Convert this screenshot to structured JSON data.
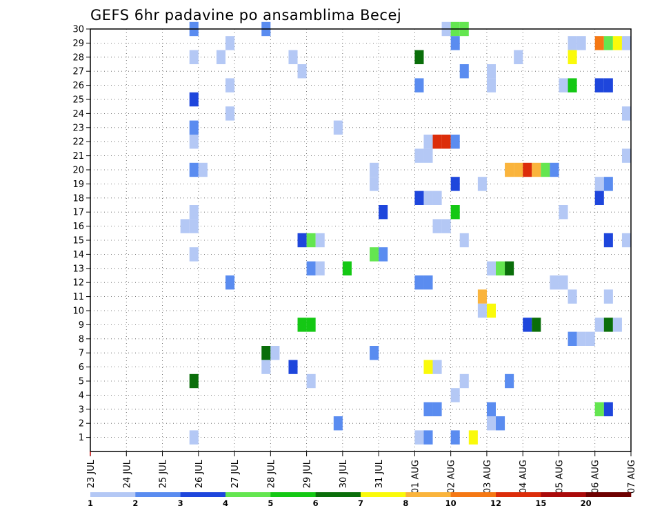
{
  "chart_data": {
    "type": "heatmap",
    "title": "GEFS 6hr padavine po ansamblima Becej",
    "xlabel": "",
    "ylabel": "",
    "x_tick_labels": [
      "23 JUL",
      "24 JUL",
      "25 JUL",
      "26 JUL",
      "27 JUL",
      "28 JUL",
      "29 JUL",
      "30 JUL",
      "31 JUL",
      "01 AUG",
      "02 AUG",
      "03 AUG",
      "04 AUG",
      "05 AUG",
      "06 AUG",
      "07 AUG"
    ],
    "x_range_steps": [
      0,
      60
    ],
    "steps_per_day": 4,
    "y_tick_labels": [
      "1",
      "2",
      "3",
      "4",
      "5",
      "6",
      "7",
      "8",
      "9",
      "10",
      "11",
      "12",
      "13",
      "14",
      "15",
      "16",
      "17",
      "18",
      "19",
      "20",
      "21",
      "22",
      "23",
      "24",
      "25",
      "26",
      "27",
      "28",
      "29",
      "30"
    ],
    "y_range": [
      0,
      30
    ],
    "grid": true,
    "legend_position": "bottom",
    "legend_thresholds": [
      "1",
      "2",
      "3",
      "4",
      "5",
      "6",
      "7",
      "8",
      "10",
      "12",
      "15",
      "20"
    ],
    "legend_colors": [
      "#b4c8f5",
      "#5a8cf0",
      "#1e46dc",
      "#64e650",
      "#14c814",
      "#0a6e0a",
      "#fafa0a",
      "#fab43c",
      "#f57814",
      "#dc2d0a",
      "#aa0a0a",
      "#6e0000"
    ],
    "cell_color_index_note": "",
    "cells": [
      [
        11.5,
        30,
        1
      ],
      [
        19.5,
        30,
        1
      ],
      [
        39.5,
        30,
        0
      ],
      [
        40.5,
        30,
        3
      ],
      [
        41.5,
        30,
        3
      ],
      [
        15.5,
        29,
        0
      ],
      [
        40.5,
        29,
        1
      ],
      [
        53.5,
        29,
        0
      ],
      [
        54.5,
        29,
        0
      ],
      [
        56.5,
        29,
        8
      ],
      [
        57.5,
        29,
        3
      ],
      [
        58.5,
        29,
        6
      ],
      [
        59.5,
        29,
        0
      ],
      [
        11.5,
        28,
        0
      ],
      [
        14.5,
        28,
        0
      ],
      [
        22.5,
        28,
        0
      ],
      [
        36.5,
        28,
        5
      ],
      [
        47.5,
        28,
        0
      ],
      [
        53.5,
        28,
        6
      ],
      [
        23.5,
        27,
        0
      ],
      [
        41.5,
        27,
        1
      ],
      [
        44.5,
        27,
        0
      ],
      [
        15.5,
        26,
        0
      ],
      [
        36.5,
        26,
        1
      ],
      [
        44.5,
        26,
        0
      ],
      [
        52.5,
        26,
        0
      ],
      [
        53.5,
        26,
        4
      ],
      [
        56.5,
        26,
        2
      ],
      [
        57.5,
        26,
        2
      ],
      [
        11.5,
        25,
        2
      ],
      [
        60.5,
        25,
        3
      ],
      [
        15.5,
        24,
        0
      ],
      [
        59.5,
        24,
        0
      ],
      [
        60.5,
        24,
        0
      ],
      [
        11.5,
        23,
        1
      ],
      [
        27.5,
        23,
        0
      ],
      [
        11.5,
        22,
        0
      ],
      [
        37.5,
        22,
        0
      ],
      [
        38.5,
        22,
        9
      ],
      [
        39.5,
        22,
        9
      ],
      [
        40.5,
        22,
        1
      ],
      [
        36.5,
        21,
        0
      ],
      [
        37.5,
        21,
        0
      ],
      [
        59.5,
        21,
        0
      ],
      [
        11.5,
        20,
        1
      ],
      [
        12.5,
        20,
        0
      ],
      [
        31.5,
        20,
        0
      ],
      [
        46.5,
        20,
        7
      ],
      [
        47.5,
        20,
        7
      ],
      [
        48.5,
        20,
        9
      ],
      [
        49.5,
        20,
        7
      ],
      [
        50.5,
        20,
        3
      ],
      [
        51.5,
        20,
        1
      ],
      [
        31.5,
        19,
        0
      ],
      [
        40.5,
        19,
        2
      ],
      [
        43.5,
        19,
        0
      ],
      [
        56.5,
        19,
        0
      ],
      [
        57.5,
        19,
        1
      ],
      [
        36.5,
        18,
        2
      ],
      [
        37.5,
        18,
        0
      ],
      [
        38.5,
        18,
        0
      ],
      [
        56.5,
        18,
        2
      ],
      [
        11.5,
        17,
        0
      ],
      [
        32.5,
        17,
        2
      ],
      [
        40.5,
        17,
        4
      ],
      [
        52.5,
        17,
        0
      ],
      [
        10.5,
        16,
        0
      ],
      [
        11.5,
        16,
        0
      ],
      [
        38.5,
        16,
        0
      ],
      [
        39.5,
        16,
        0
      ],
      [
        60.5,
        16,
        1
      ],
      [
        23.5,
        15,
        2
      ],
      [
        24.5,
        15,
        3
      ],
      [
        25.5,
        15,
        0
      ],
      [
        41.5,
        15,
        0
      ],
      [
        57.5,
        15,
        2
      ],
      [
        59.5,
        15,
        0
      ],
      [
        60.5,
        15,
        4
      ],
      [
        61.5,
        15,
        11
      ],
      [
        11.5,
        14,
        0
      ],
      [
        31.5,
        14,
        3
      ],
      [
        32.5,
        14,
        1
      ],
      [
        24.5,
        13,
        1
      ],
      [
        25.5,
        13,
        0
      ],
      [
        28.5,
        13,
        4
      ],
      [
        44.5,
        13,
        0
      ],
      [
        45.5,
        13,
        3
      ],
      [
        46.5,
        13,
        5
      ],
      [
        15.5,
        12,
        1
      ],
      [
        36.5,
        12,
        1
      ],
      [
        37.5,
        12,
        1
      ],
      [
        51.5,
        12,
        0
      ],
      [
        52.5,
        12,
        0
      ],
      [
        43.5,
        11,
        7
      ],
      [
        53.5,
        11,
        0
      ],
      [
        57.5,
        11,
        0
      ],
      [
        43.5,
        10,
        0
      ],
      [
        44.5,
        10,
        6
      ],
      [
        23.5,
        9,
        4
      ],
      [
        24.5,
        9,
        4
      ],
      [
        48.5,
        9,
        2
      ],
      [
        49.5,
        9,
        5
      ],
      [
        56.5,
        9,
        0
      ],
      [
        57.5,
        9,
        5
      ],
      [
        58.5,
        9,
        0
      ],
      [
        53.5,
        8,
        1
      ],
      [
        54.5,
        8,
        0
      ],
      [
        55.5,
        8,
        0
      ],
      [
        19.5,
        7,
        5
      ],
      [
        20.5,
        7,
        0
      ],
      [
        31.5,
        7,
        1
      ],
      [
        19.5,
        6,
        0
      ],
      [
        22.5,
        6,
        2
      ],
      [
        37.5,
        6,
        6
      ],
      [
        38.5,
        6,
        0
      ],
      [
        11.5,
        5,
        5
      ],
      [
        24.5,
        5,
        0
      ],
      [
        41.5,
        5,
        0
      ],
      [
        46.5,
        5,
        1
      ],
      [
        40.5,
        4,
        0
      ],
      [
        37.5,
        3,
        1
      ],
      [
        38.5,
        3,
        1
      ],
      [
        44.5,
        3,
        1
      ],
      [
        56.5,
        3,
        3
      ],
      [
        57.5,
        3,
        2
      ],
      [
        27.5,
        2,
        1
      ],
      [
        44.5,
        2,
        0
      ],
      [
        45.5,
        2,
        1
      ],
      [
        11.5,
        1,
        0
      ],
      [
        36.5,
        1,
        0
      ],
      [
        37.5,
        1,
        1
      ],
      [
        40.5,
        1,
        1
      ],
      [
        42.5,
        1,
        6
      ]
    ]
  }
}
